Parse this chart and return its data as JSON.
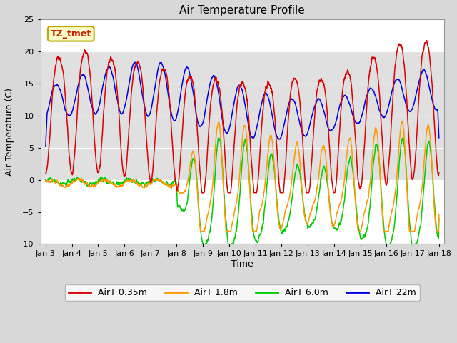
{
  "title": "Air Temperature Profile",
  "xlabel": "Time",
  "ylabel": "Air Temperature (C)",
  "ylim": [
    -10,
    25
  ],
  "x_tick_labels": [
    "Jan 3",
    "Jan 4",
    "Jan 5",
    "Jan 6",
    "Jan 7",
    "Jan 8",
    "Jan 9",
    "Jan 10",
    "Jan 11",
    "Jan 12",
    "Jan 13",
    "Jan 14",
    "Jan 15",
    "Jan 16",
    "Jan 17",
    "Jan 18"
  ],
  "colors": {
    "AirT_035": "#dd0000",
    "AirT_18": "#ff9900",
    "AirT_60": "#00cc00",
    "AirT_22": "#0000dd"
  },
  "legend_labels": [
    "AirT 0.35m",
    "AirT 1.8m",
    "AirT 6.0m",
    "AirT 22m"
  ],
  "annotation_text": "TZ_tmet",
  "annotation_box_facecolor": "#ffffcc",
  "annotation_box_edgecolor": "#bbaa00",
  "fig_bg_color": "#d8d8d8",
  "plot_bg_color": "#ffffff",
  "band_color": "#e0e0e0",
  "title_fontsize": 11,
  "axis_label_fontsize": 9,
  "tick_fontsize": 8
}
